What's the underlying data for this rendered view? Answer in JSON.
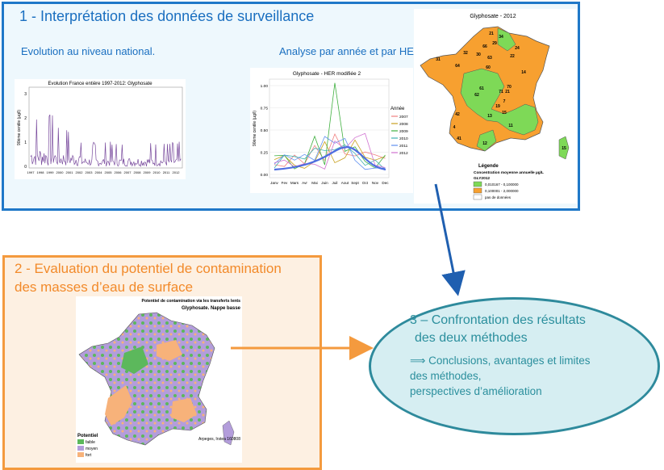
{
  "box1": {
    "title": "1 - Interprétation des données de surveillance",
    "subtitle_left": "Evolution au niveau national.",
    "subtitle_right": "Analyse par année et par HER"
  },
  "box2": {
    "title_line1": "2 - Evaluation du potentiel de contamination",
    "title_line2": "des masses d’eau de surface"
  },
  "box3": {
    "title_line1": "3 – Confrontation des résultats",
    "title_line2": "des deux méthodes",
    "arrow_glyph": "⟹",
    "text_line1": "Conclusions, avantages et limites",
    "text_line2": "des méthodes,",
    "text_line3": "perspectives d’amélioration"
  },
  "chart1": {
    "title": "Evolution France entière 1997-2012: Glyphosate",
    "ylabel": "90ème centile (µg/l)",
    "yticks": [
      "0",
      "1",
      "2",
      "3"
    ],
    "xticks": [
      "1997",
      "1998",
      "1999",
      "2000",
      "2001",
      "2002",
      "2003",
      "2004",
      "2005",
      "2006",
      "2007",
      "2008",
      "2009",
      "2010",
      "2011",
      "2012"
    ],
    "color": "#7a4c9e"
  },
  "chart2": {
    "title": "Glyphosate - HER modifiée 2",
    "ylabel": "90ème centile (µg/l)",
    "yticks": [
      "0.00",
      "0.25",
      "0.50",
      "0.75",
      "1.00"
    ],
    "months": [
      "Janv",
      "Fev",
      "Mars",
      "Avr",
      "Mai",
      "Juin",
      "Juil",
      "Aout",
      "Sept",
      "Oct",
      "Nov",
      "Dec"
    ],
    "legend_title": "Année",
    "legend": [
      "2007",
      "2008",
      "2009",
      "2010",
      "2011",
      "2012"
    ],
    "colors": [
      "#f08080",
      "#c8a020",
      "#40b040",
      "#40b0b0",
      "#6090f0",
      "#d070d0"
    ]
  },
  "map1": {
    "title": "Glyphosate - 2012",
    "legend_title": "Légende",
    "legend_sub1": "Concentration moyenne annuelle µg/L",
    "legend_sub2": "GLY2012",
    "legend_items": [
      "0,010167 - 0,100000",
      "0,100001 - 2,000000",
      "pas de données"
    ],
    "colors": {
      "low": "#7ed957",
      "high": "#f7a030",
      "none": "#ffffff"
    },
    "region_labels": [
      "21",
      "34",
      "29",
      "66",
      "30",
      "32",
      "63",
      "22",
      "24",
      "31",
      "64",
      "60",
      "14",
      "61",
      "62",
      "71",
      "21",
      "7",
      "70",
      "19",
      "15",
      "13",
      "11",
      "42",
      "4",
      "41",
      "12",
      "15"
    ]
  },
  "map2": {
    "title_line1": "Potentiel de contamination via les transferts lents",
    "title_line2": "Glyphosate. Nappe basse",
    "legend_title": "Potentiel",
    "legend_items": [
      "faible",
      "moyen",
      "fort"
    ],
    "credit": "Arpeges, Irstea 160808",
    "colors": {
      "faible": "#5cb85c",
      "moyen": "#b39ddb",
      "fort": "#f7b27a"
    }
  }
}
